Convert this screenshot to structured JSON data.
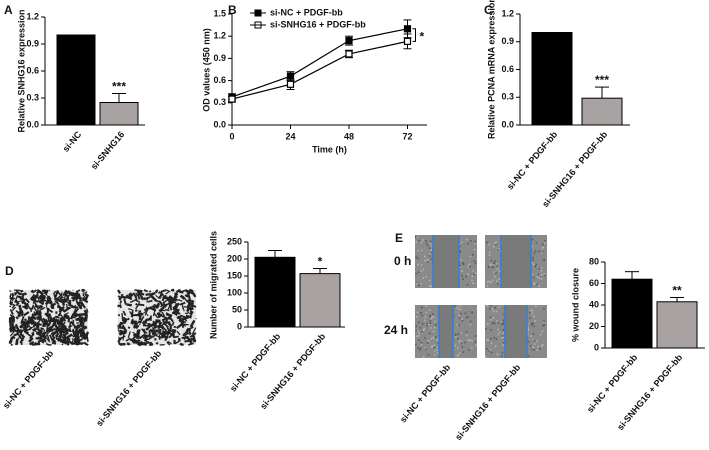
{
  "chart_data": [
    {
      "type": "bar",
      "panel": "A",
      "ylabel": "Relative SNHG16 expression",
      "categories": [
        "si-NC",
        "si-SNHG16"
      ],
      "values": [
        1.0,
        0.25
      ],
      "errors": [
        0,
        0.1
      ],
      "colors": [
        "#000000",
        "#a8a2a2"
      ],
      "significance": [
        null,
        "***"
      ],
      "ylim": [
        0,
        1.2
      ],
      "yticks": [
        {
          "value": 0,
          "label": "0.0"
        },
        0.3,
        0.6,
        0.9,
        1.2
      ]
    },
    {
      "type": "line",
      "panel": "B",
      "xlabel": "Time (h)",
      "ylabel": "OD values (450 nm)",
      "x": [
        0,
        24,
        48,
        72
      ],
      "xlim": [
        0,
        80
      ],
      "xticks": [
        0,
        24,
        48,
        72
      ],
      "ylim": [
        0,
        1.5
      ],
      "yticks": [
        {
          "value": 0,
          "label": "0.0"
        },
        0.3,
        0.6,
        0.9,
        1.2,
        1.5
      ],
      "series": [
        {
          "name": "si-NC + PDGF-bb",
          "color": "#000000",
          "marker": "filled-square",
          "values": [
            0.38,
            0.66,
            1.14,
            1.3
          ],
          "errors": [
            0.04,
            0.06,
            0.06,
            0.12
          ]
        },
        {
          "name": "si-SNHG16 + PDGF-bb",
          "color": "#000000",
          "marker": "open-square",
          "values": [
            0.35,
            0.55,
            0.96,
            1.13
          ],
          "errors": [
            0.04,
            0.07,
            0.05,
            0.1
          ]
        }
      ],
      "annotation": "*"
    },
    {
      "type": "bar",
      "panel": "C",
      "ylabel": "Relative PCNA mRNA expression",
      "categories": [
        "si-NC + PDGF-bb",
        "si-SNHG16 + PDGF-bb"
      ],
      "values": [
        1.0,
        0.29
      ],
      "errors": [
        0,
        0.12
      ],
      "colors": [
        "#000000",
        "#a8a2a2"
      ],
      "significance": [
        null,
        "***"
      ],
      "ylim": [
        0,
        1.2
      ],
      "yticks": [
        {
          "value": 0,
          "label": "0.0"
        },
        0.3,
        0.6,
        0.9,
        1.2
      ]
    },
    {
      "type": "bar",
      "panel": "D",
      "ylabel": "Number of migrated cells",
      "categories": [
        "si-NC + PDGF-bb",
        "si-SNHG16 + PDGF-bb"
      ],
      "values": [
        205,
        157
      ],
      "errors": [
        20,
        15
      ],
      "colors": [
        "#000000",
        "#a8a2a2"
      ],
      "significance": [
        null,
        "*"
      ],
      "ylim": [
        0,
        250
      ],
      "yticks": [
        0,
        50,
        100,
        150,
        200,
        250
      ]
    },
    {
      "type": "bar",
      "panel": "E",
      "ylabel": "% wound closure",
      "categories": [
        "si-NC + PDGF-bb",
        "si-SNHG16 + PDGF-bb"
      ],
      "values": [
        64,
        43
      ],
      "errors": [
        7,
        4
      ],
      "colors": [
        "#000000",
        "#a8a2a2"
      ],
      "significance": [
        null,
        "**"
      ],
      "ylim": [
        0,
        80
      ],
      "yticks": [
        0,
        20,
        40,
        60,
        80
      ]
    }
  ],
  "image_panels": {
    "D": {
      "labels": [
        "si-NC + PDGF-bb",
        "si-SNHG16 + PDGF-bb"
      ]
    },
    "E": {
      "row_labels": [
        "0 h",
        "24 h"
      ],
      "labels": [
        "si-NC + PDGF-bb",
        "si-SNHG16 + PDGF-bb"
      ]
    }
  }
}
